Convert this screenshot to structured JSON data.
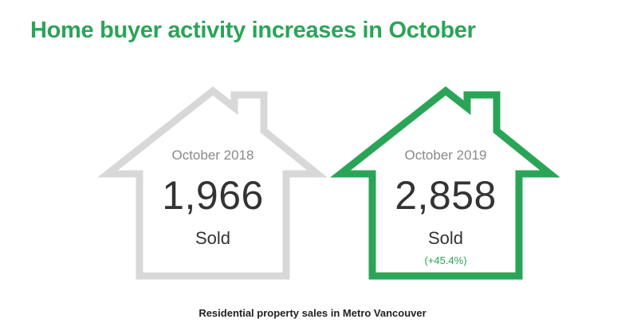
{
  "title": "Home buyer activity increases in October",
  "colors": {
    "accent": "#2aa557",
    "muted_outline": "#d8d8d8",
    "text": "#333333"
  },
  "cards": [
    {
      "period": "October 2018",
      "value": "1,966",
      "label": "Sold",
      "change": "",
      "outline": "#d8d8d8"
    },
    {
      "period": "October 2019",
      "value": "2,858",
      "label": "Sold",
      "change": "(+45.4%)",
      "outline": "#2aa557"
    }
  ],
  "caption": "Residential property sales in Metro Vancouver"
}
